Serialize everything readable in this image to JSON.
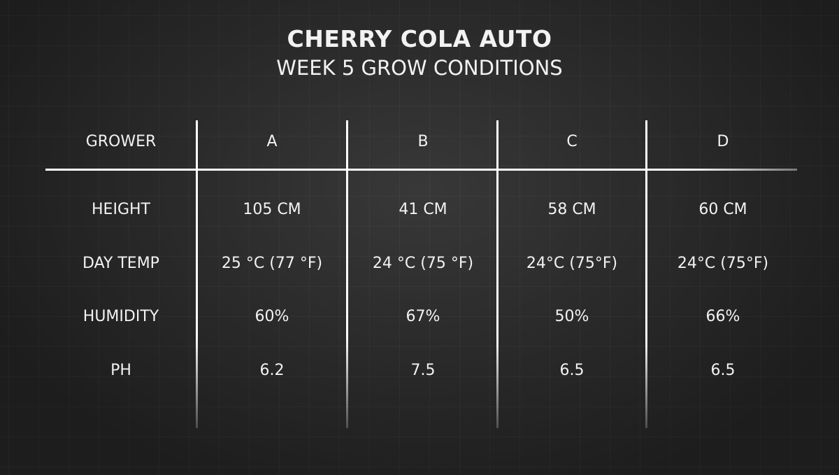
{
  "title": "CHERRY COLA AUTO",
  "subtitle": "WEEK 5 GROW CONDITIONS",
  "chart_data": {
    "type": "table",
    "columns": [
      "GROWER",
      "A",
      "B",
      "C",
      "D"
    ],
    "rows": [
      [
        "HEIGHT",
        "105 CM",
        "41 CM",
        "58 CM",
        "60 CM"
      ],
      [
        "DAY TEMP",
        "25 °C (77 °F)",
        "24 °C (75 °F)",
        "24°C (75°F)",
        "24°C (75°F)"
      ],
      [
        "HUMIDITY",
        "60%",
        "67%",
        "50%",
        "66%"
      ],
      [
        "PH",
        "6.2",
        "7.5",
        "6.5",
        "6.5"
      ]
    ]
  }
}
